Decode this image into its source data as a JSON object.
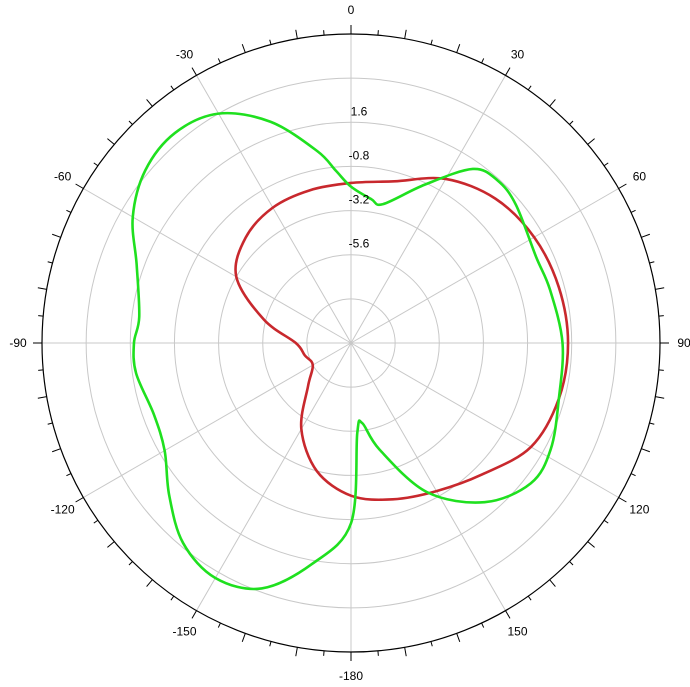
{
  "chart_data": {
    "type": "polar-line",
    "title": "",
    "angle_direction": "clockwise",
    "angle_zero": "top",
    "angle_labels": [
      {
        "angle": 0,
        "text": "0"
      },
      {
        "angle": 30,
        "text": "30"
      },
      {
        "angle": 60,
        "text": "60"
      },
      {
        "angle": 90,
        "text": "90"
      },
      {
        "angle": 120,
        "text": "120"
      },
      {
        "angle": 150,
        "text": "150"
      },
      {
        "angle": 180,
        "text": "-180"
      },
      {
        "angle": -150,
        "text": "-150"
      },
      {
        "angle": -120,
        "text": "-120"
      },
      {
        "angle": -90,
        "text": "-90"
      },
      {
        "angle": -60,
        "text": "-60"
      },
      {
        "angle": -30,
        "text": "-30"
      }
    ],
    "radial_range": [
      -10.4,
      6.4
    ],
    "radial_rings": [
      -8.0,
      -5.6,
      -3.2,
      -0.8,
      1.6,
      4.0
    ],
    "radial_labels": [
      {
        "value": -5.6,
        "text": "-5.6"
      },
      {
        "value": -3.2,
        "text": "-3.2"
      },
      {
        "value": -0.8,
        "text": "-0.8"
      },
      {
        "value": 1.6,
        "text": "1.6"
      }
    ],
    "grid": true,
    "colors": {
      "series1": "#c8282d",
      "series2": "#1fe01f",
      "grid": "#c8c8c8",
      "frame": "#000000"
    },
    "series": [
      {
        "color": "#c8282d",
        "points": [
          [
            0,
            -1.7
          ],
          [
            15,
            -1.3
          ],
          [
            30,
            -0.1
          ],
          [
            45,
            0.7
          ],
          [
            60,
            1.1
          ],
          [
            75,
            1.3
          ],
          [
            90,
            1.4
          ],
          [
            105,
            1.3
          ],
          [
            120,
            0.9
          ],
          [
            135,
            -0.3
          ],
          [
            150,
            -1.1
          ],
          [
            165,
            -1.6
          ],
          [
            180,
            -2.1
          ],
          [
            -165,
            -3.2
          ],
          [
            -150,
            -5.0
          ],
          [
            -135,
            -7.1
          ],
          [
            -120,
            -8.0
          ],
          [
            -105,
            -7.8
          ],
          [
            -90,
            -7.4
          ],
          [
            -75,
            -5.5
          ],
          [
            -60,
            -3.2
          ],
          [
            -45,
            -2.3
          ],
          [
            -30,
            -1.9
          ],
          [
            -15,
            -1.8
          ]
        ]
      },
      {
        "color": "#1fe01f",
        "points": [
          [
            0,
            -1.9
          ],
          [
            8,
            -2.5
          ],
          [
            13,
            -2.65
          ],
          [
            25,
            -0.9
          ],
          [
            35,
            1.15
          ],
          [
            42,
            1.5
          ],
          [
            50,
            1.3
          ],
          [
            65,
            0.7
          ],
          [
            75,
            0.8
          ],
          [
            90,
            1.1
          ],
          [
            105,
            1.3
          ],
          [
            118,
            1.9
          ],
          [
            128,
            2.0
          ],
          [
            140,
            0.9
          ],
          [
            153,
            -1.3
          ],
          [
            165,
            -4.4
          ],
          [
            172,
            -6.0
          ],
          [
            176,
            -5.5
          ],
          [
            180,
            -0.6
          ],
          [
            -170,
            1.8
          ],
          [
            -160,
            3.8
          ],
          [
            -150,
            4.35
          ],
          [
            -140,
            3.8
          ],
          [
            -130,
            2.5
          ],
          [
            -120,
            1.3
          ],
          [
            -110,
            1.0
          ],
          [
            -98,
            1.4
          ],
          [
            -90,
            1.4
          ],
          [
            -83,
            1.2
          ],
          [
            -70,
            2.0
          ],
          [
            -60,
            3.3
          ],
          [
            -50,
            4.2
          ],
          [
            -40,
            4.5
          ],
          [
            -30,
            4.0
          ],
          [
            -20,
            2.4
          ],
          [
            -10,
            0.2
          ],
          [
            -5,
            -1.0
          ]
        ]
      }
    ]
  }
}
